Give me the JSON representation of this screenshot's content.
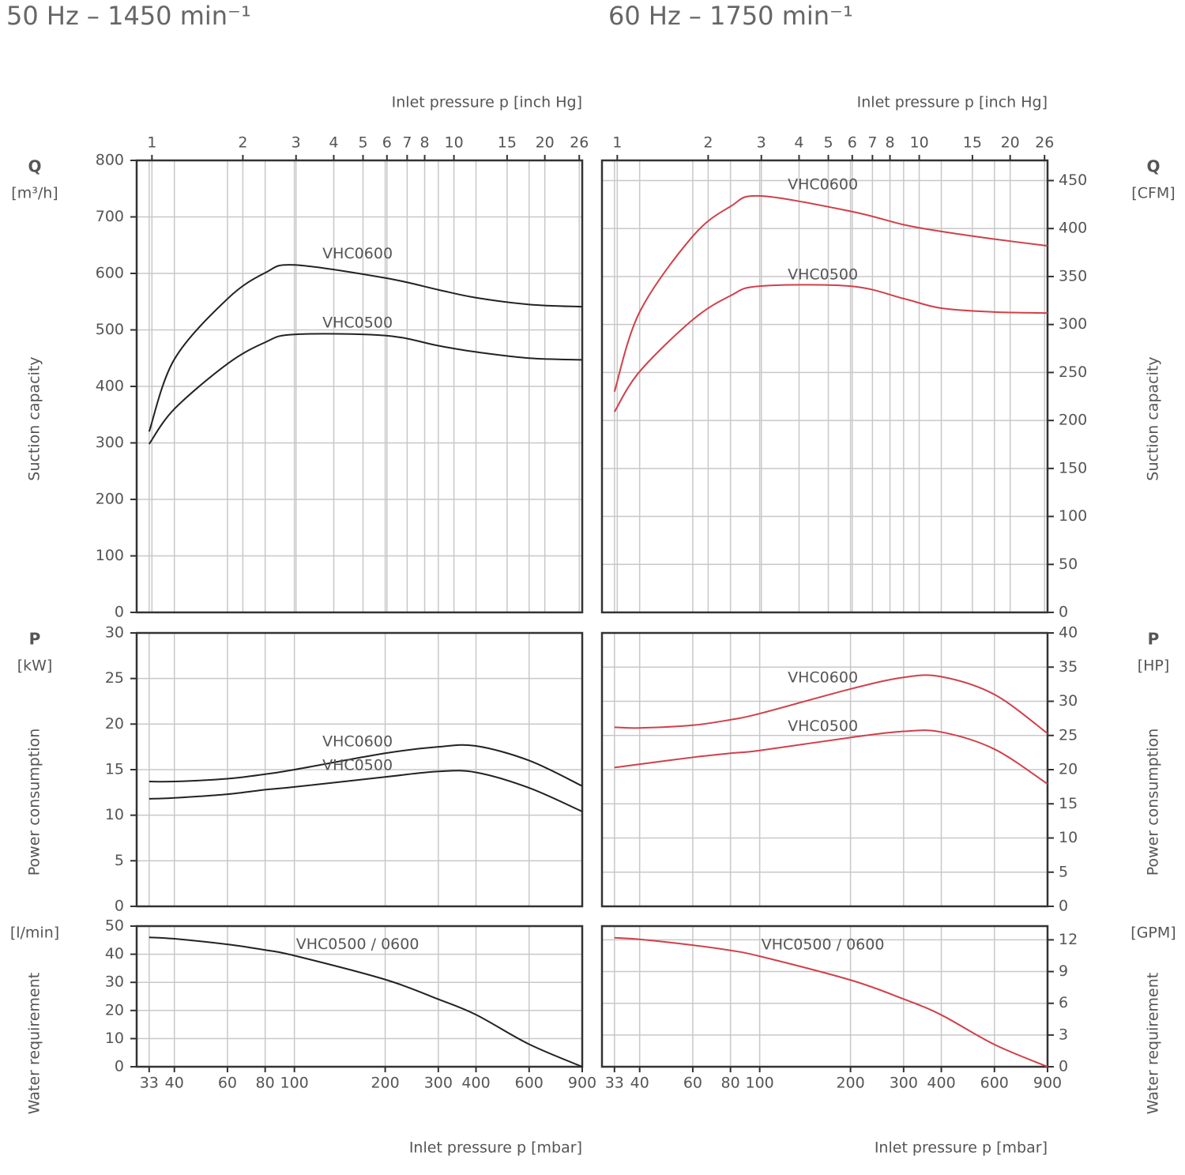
{
  "chart_data": [
    {
      "type": "line",
      "title": "50 Hz – 1450 min⁻¹",
      "y_symbol": "Q",
      "y_unit": "[m³/h]",
      "ylabel": "Suction capacity",
      "y_axis_side": "left",
      "x2label": "Inlet pressure p [inch Hg]",
      "x2lim": [
        0.89,
        26.6
      ],
      "x2ticks": [
        1,
        2,
        3,
        4,
        5,
        6,
        7,
        8,
        10,
        15,
        20,
        26
      ],
      "xlim": [
        30,
        900
      ],
      "xticks": [
        33,
        40,
        60,
        80,
        100,
        200,
        300,
        400,
        600,
        900
      ],
      "log_x": true,
      "grid": true,
      "ylim": [
        0,
        800
      ],
      "yticks": [
        0,
        100,
        200,
        300,
        400,
        500,
        600,
        700,
        800
      ],
      "x": [
        33,
        40,
        60,
        80,
        100,
        200,
        300,
        400,
        600,
        900
      ],
      "series": [
        {
          "name": "VHC0600",
          "color": "#222222",
          "values": [
            320,
            448,
            555,
            601,
            615,
            592,
            571,
            557,
            545,
            541
          ]
        },
        {
          "name": "VHC0500",
          "color": "#222222",
          "values": [
            298,
            360,
            440,
            478,
            492,
            490,
            472,
            461,
            450,
            447
          ]
        }
      ]
    },
    {
      "type": "line",
      "title": "60 Hz – 1750 min⁻¹",
      "y_symbol": "Q",
      "y_unit": "[CFM]",
      "ylabel": "Suction capacity",
      "y_axis_side": "right",
      "x2label": "Inlet pressure p [inch Hg]",
      "x2lim": [
        0.89,
        26.6
      ],
      "x2ticks": [
        1,
        2,
        3,
        4,
        5,
        6,
        7,
        8,
        10,
        15,
        20,
        26
      ],
      "xlim": [
        30,
        900
      ],
      "xticks": [
        33,
        40,
        60,
        80,
        100,
        200,
        300,
        400,
        600,
        900
      ],
      "log_x": true,
      "grid": true,
      "ylim": [
        0,
        471
      ],
      "yticks": [
        0,
        50,
        100,
        150,
        200,
        250,
        300,
        350,
        400,
        450
      ],
      "x": [
        33,
        40,
        60,
        80,
        100,
        200,
        300,
        400,
        600,
        900
      ],
      "series": [
        {
          "name": "VHC0600",
          "color": "#d0404a",
          "values": [
            230,
            313,
            392,
            423,
            434,
            418,
            404,
            397,
            389,
            382
          ]
        },
        {
          "name": "VHC0500",
          "color": "#d0404a",
          "values": [
            209,
            251,
            305,
            330,
            340,
            340,
            327,
            317,
            313,
            312
          ]
        }
      ]
    },
    {
      "type": "line",
      "y_symbol": "P",
      "y_unit": "[kW]",
      "ylabel": "Power consumption",
      "y_axis_side": "left",
      "xlim": [
        30,
        900
      ],
      "xticks": [
        33,
        40,
        60,
        80,
        100,
        200,
        300,
        400,
        600,
        900
      ],
      "log_x": true,
      "grid": true,
      "ylim": [
        0,
        30
      ],
      "yticks": [
        0,
        5,
        10,
        15,
        20,
        25,
        30
      ],
      "x": [
        33,
        40,
        60,
        80,
        100,
        200,
        300,
        400,
        600,
        900
      ],
      "series": [
        {
          "name": "VHC0600",
          "color": "#222222",
          "values": [
            13.7,
            13.7,
            14.0,
            14.5,
            15.0,
            16.8,
            17.5,
            17.6,
            16.0,
            13.2
          ]
        },
        {
          "name": "VHC0500",
          "color": "#222222",
          "values": [
            11.8,
            11.9,
            12.3,
            12.8,
            13.1,
            14.2,
            14.8,
            14.7,
            13.0,
            10.4
          ]
        }
      ]
    },
    {
      "type": "line",
      "y_symbol": "P",
      "y_unit": "[HP]",
      "ylabel": "Power consumption",
      "y_axis_side": "right",
      "xlim": [
        30,
        900
      ],
      "xticks": [
        33,
        40,
        60,
        80,
        100,
        200,
        300,
        400,
        600,
        900
      ],
      "log_x": true,
      "grid": true,
      "ylim": [
        0,
        40
      ],
      "yticks": [
        0,
        5,
        10,
        15,
        20,
        25,
        30,
        35,
        40
      ],
      "x": [
        33,
        40,
        60,
        80,
        100,
        200,
        300,
        400,
        600,
        900
      ],
      "series": [
        {
          "name": "VHC0600",
          "color": "#d0404a",
          "values": [
            26.2,
            26.1,
            26.5,
            27.3,
            28.2,
            31.8,
            33.5,
            33.6,
            31.0,
            25.3
          ]
        },
        {
          "name": "VHC0500",
          "color": "#d0404a",
          "values": [
            20.3,
            20.8,
            21.8,
            22.4,
            22.8,
            24.7,
            25.6,
            25.5,
            23.0,
            17.9
          ]
        }
      ]
    },
    {
      "type": "line",
      "y_unit": "[l/min]",
      "ylabel": "Water requirement",
      "y_axis_side": "left",
      "xlabel": "Inlet pressure p [mbar]",
      "xlim": [
        30,
        900
      ],
      "xticks": [
        33,
        40,
        60,
        80,
        100,
        200,
        300,
        400,
        600,
        900
      ],
      "log_x": true,
      "grid": true,
      "ylim": [
        0,
        50
      ],
      "yticks": [
        0,
        10,
        20,
        30,
        40,
        50
      ],
      "x": [
        33,
        40,
        60,
        80,
        100,
        200,
        300,
        400,
        600,
        900
      ],
      "series": [
        {
          "name": "VHC0500 / 0600",
          "color": "#222222",
          "values": [
            46,
            45.5,
            43.5,
            41.5,
            39.5,
            31,
            24,
            18.5,
            8,
            0
          ]
        }
      ]
    },
    {
      "type": "line",
      "y_unit": "[GPM]",
      "ylabel": "Water requirement",
      "y_axis_side": "right",
      "xlabel": "Inlet pressure p [mbar]",
      "xlim": [
        30,
        900
      ],
      "xticks": [
        33,
        40,
        60,
        80,
        100,
        200,
        300,
        400,
        600,
        900
      ],
      "log_x": true,
      "grid": true,
      "ylim": [
        0,
        13.3
      ],
      "yticks": [
        0,
        3,
        6,
        9,
        12
      ],
      "x": [
        33,
        40,
        60,
        80,
        100,
        200,
        300,
        400,
        600,
        900
      ],
      "series": [
        {
          "name": "VHC0500 / 0600",
          "color": "#d0404a",
          "values": [
            12.2,
            12.05,
            11.5,
            11.0,
            10.45,
            8.2,
            6.4,
            4.9,
            2.1,
            0
          ]
        }
      ]
    }
  ]
}
